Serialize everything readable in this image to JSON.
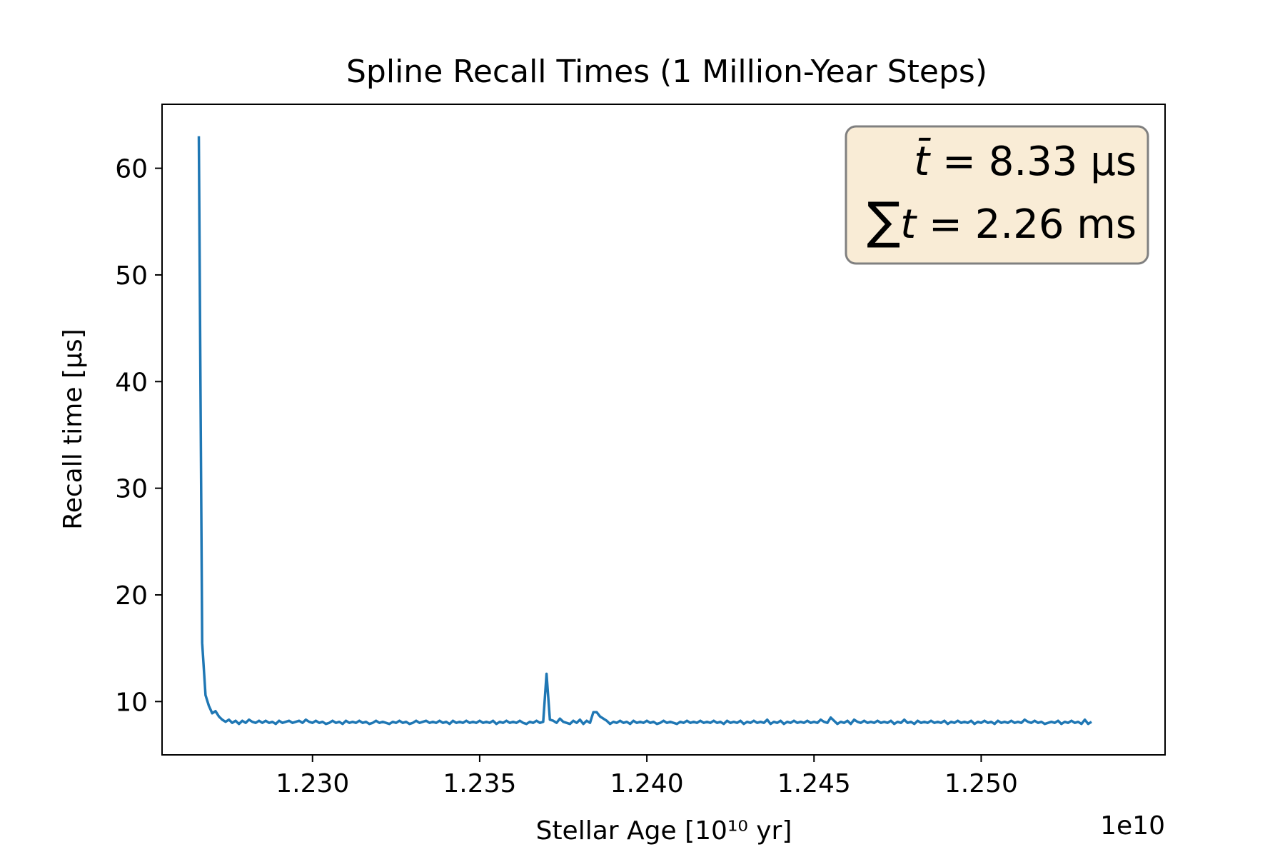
{
  "chart_data": {
    "type": "line",
    "title": "Spline Recall Times (1 Million-Year Steps)",
    "xlabel": "Stellar Age [10¹⁰ yr]",
    "ylabel": "Recall time [μs]",
    "x_offset_text": "1e10",
    "xlim": [
      1.2255,
      1.2555
    ],
    "ylim": [
      5,
      66
    ],
    "xticks": [
      1.23,
      1.235,
      1.24,
      1.245,
      1.25
    ],
    "xtick_labels": [
      "1.230",
      "1.235",
      "1.240",
      "1.245",
      "1.250"
    ],
    "yticks": [
      10,
      20,
      30,
      40,
      50,
      60
    ],
    "ytick_labels": [
      "10",
      "20",
      "30",
      "40",
      "50",
      "60"
    ],
    "grid": false,
    "color": "#1f77b4",
    "series": [
      {
        "x_start": 1.2266,
        "x_step": 0.0001,
        "values": [
          63.0,
          15.5,
          10.6,
          9.6,
          8.9,
          9.1,
          8.6,
          8.3,
          8.1,
          8.3,
          8.0,
          8.2,
          7.9,
          8.2,
          8.0,
          8.3,
          8.1,
          8.0,
          8.2,
          8.0,
          8.2,
          8.0,
          8.1,
          7.9,
          8.2,
          8.0,
          8.1,
          8.2,
          8.0,
          8.1,
          8.2,
          8.0,
          8.3,
          8.1,
          8.0,
          8.2,
          8.0,
          8.1,
          7.9,
          8.0,
          8.2,
          8.0,
          8.1,
          7.9,
          8.2,
          8.0,
          8.1,
          8.0,
          8.2,
          8.0,
          8.1,
          7.9,
          8.0,
          8.2,
          8.0,
          8.1,
          8.0,
          7.9,
          8.1,
          8.0,
          8.2,
          8.0,
          8.1,
          7.9,
          8.0,
          8.2,
          8.0,
          8.1,
          8.2,
          8.0,
          8.1,
          8.0,
          8.2,
          8.0,
          8.1,
          7.9,
          8.2,
          8.0,
          8.1,
          8.0,
          8.2,
          8.0,
          8.1,
          8.0,
          8.2,
          8.0,
          8.1,
          8.0,
          8.2,
          7.9,
          8.1,
          8.0,
          8.2,
          8.0,
          8.1,
          8.0,
          8.2,
          8.0,
          7.9,
          8.1,
          8.0,
          8.2,
          8.0,
          8.1,
          12.6,
          8.3,
          8.2,
          8.0,
          8.4,
          8.1,
          8.0,
          7.9,
          8.2,
          8.0,
          8.3,
          7.9,
          8.2,
          8.0,
          9.0,
          9.0,
          8.6,
          8.4,
          8.2,
          7.9,
          8.1,
          8.0,
          8.2,
          8.0,
          8.1,
          7.9,
          8.2,
          8.0,
          8.1,
          8.0,
          8.2,
          8.0,
          8.1,
          7.9,
          8.0,
          8.2,
          8.0,
          8.1,
          8.0,
          7.9,
          8.1,
          8.0,
          8.2,
          8.0,
          8.1,
          8.0,
          8.2,
          8.0,
          8.1,
          8.0,
          8.2,
          8.0,
          8.1,
          7.9,
          8.2,
          8.0,
          8.1,
          8.0,
          8.2,
          7.9,
          8.1,
          8.0,
          8.2,
          8.0,
          8.1,
          8.0,
          8.3,
          7.9,
          8.1,
          8.0,
          8.2,
          7.9,
          8.1,
          8.0,
          8.2,
          8.0,
          8.1,
          8.0,
          8.2,
          8.0,
          8.1,
          8.0,
          8.3,
          8.1,
          8.0,
          8.5,
          8.2,
          7.9,
          8.1,
          8.0,
          8.2,
          7.9,
          8.3,
          8.1,
          8.0,
          8.2,
          8.0,
          8.1,
          8.0,
          8.2,
          8.0,
          8.1,
          8.0,
          8.2,
          7.9,
          8.1,
          8.0,
          8.3,
          8.0,
          8.1,
          7.9,
          8.2,
          8.0,
          8.1,
          8.0,
          8.2,
          8.0,
          8.1,
          8.0,
          8.2,
          7.9,
          8.1,
          8.0,
          8.2,
          8.0,
          8.1,
          8.0,
          8.2,
          7.9,
          8.1,
          8.0,
          8.2,
          8.0,
          8.1,
          7.9,
          8.2,
          8.0,
          8.1,
          8.0,
          8.2,
          8.0,
          8.1,
          8.0,
          8.3,
          8.1,
          8.0,
          8.2,
          8.0,
          8.1,
          7.9,
          8.0,
          8.1,
          8.0,
          8.2,
          7.9,
          8.1,
          8.0,
          8.2,
          8.0,
          8.1,
          7.9,
          8.3,
          7.9,
          8.1
        ]
      }
    ],
    "annotation": {
      "mean_symbol": "t̄",
      "mean_value": "8.33 μs",
      "sum_symbol": "∑",
      "sum_var": "t",
      "sum_value": "2.26 ms",
      "position": "top-right",
      "box_fill": "#f9ecd6",
      "box_edge": "#808080"
    }
  }
}
